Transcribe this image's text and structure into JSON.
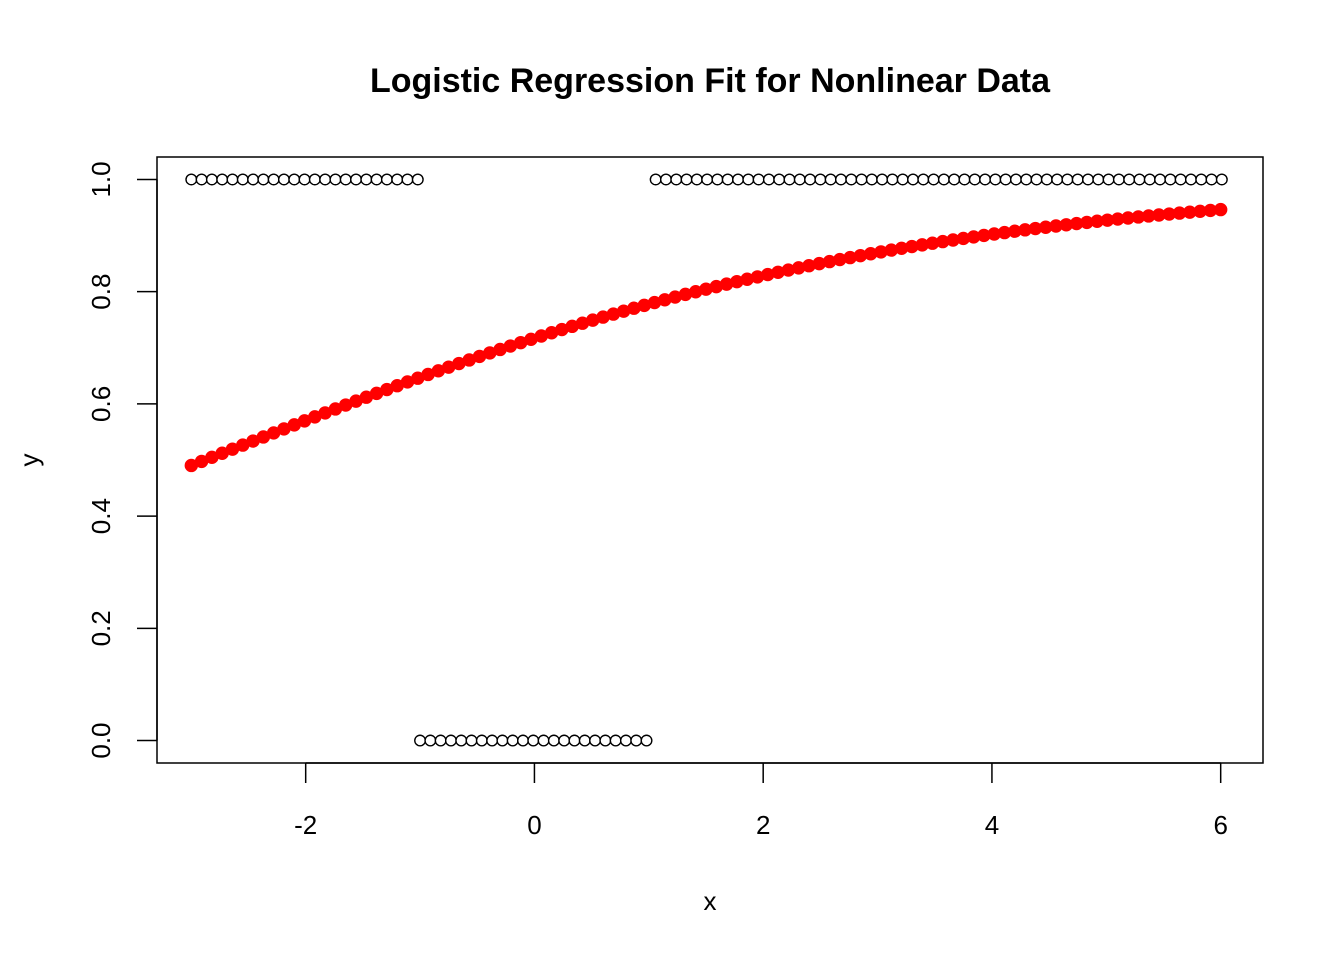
{
  "chart_data": {
    "type": "scatter",
    "title": "Logistic Regression Fit for Nonlinear Data",
    "xlabel": "x",
    "ylabel": "y",
    "xlim": [
      -3.3,
      6.37
    ],
    "ylim": [
      -0.04,
      1.04
    ],
    "x_ticks": [
      {
        "value": -2,
        "label": "-2"
      },
      {
        "value": 0,
        "label": "0"
      },
      {
        "value": 2,
        "label": "2"
      },
      {
        "value": 4,
        "label": "4"
      },
      {
        "value": 6,
        "label": "6"
      }
    ],
    "y_ticks": [
      {
        "value": 0.0,
        "label": "0.0"
      },
      {
        "value": 0.2,
        "label": "0.2"
      },
      {
        "value": 0.4,
        "label": "0.4"
      },
      {
        "value": 0.6,
        "label": "0.6"
      },
      {
        "value": 0.8,
        "label": "0.8"
      },
      {
        "value": 1.0,
        "label": "1.0"
      }
    ],
    "grid": false,
    "legend": "none",
    "series": [
      {
        "marker": "open-circle",
        "color": "#000000",
        "segments": [
          {
            "x_from": -3.0,
            "x_to": -1.06,
            "step": 0.09,
            "y": 1
          },
          {
            "x_from": -1.0,
            "x_to": 1.0,
            "step": 0.09,
            "y": 0
          },
          {
            "x_from": 1.06,
            "x_to": 6.0,
            "step": 0.09,
            "y": 1
          }
        ]
      },
      {
        "marker": "filled-circle",
        "color": "#ff0000",
        "x_from": -3.0,
        "x_to": 6.0,
        "step": 0.09,
        "fit": {
          "model": "logistic",
          "intercept": 0.93,
          "slope": 0.323
        }
      }
    ]
  }
}
